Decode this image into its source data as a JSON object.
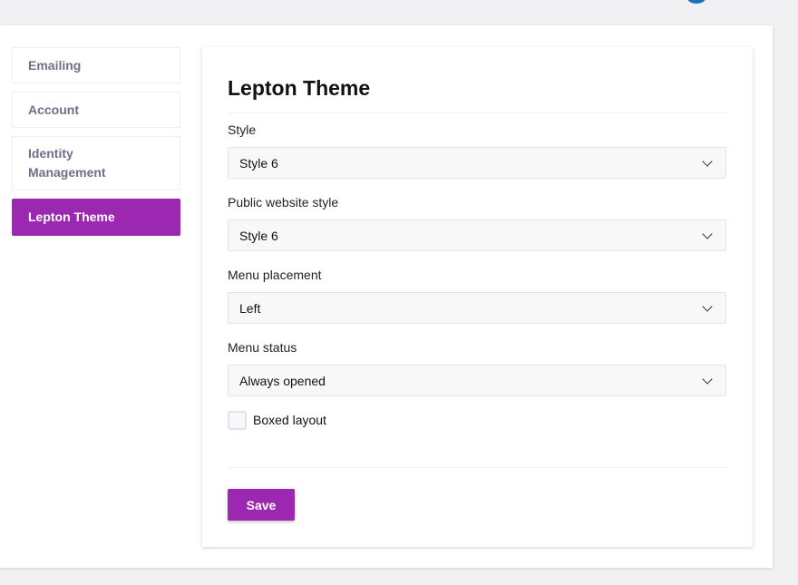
{
  "sidebar": {
    "items": [
      {
        "label": "Emailing"
      },
      {
        "label": "Account"
      },
      {
        "label": "Identity Management"
      },
      {
        "label": "Lepton Theme",
        "active": true
      }
    ]
  },
  "card": {
    "title": "Lepton Theme",
    "fields": [
      {
        "label": "Style",
        "value": "Style 6"
      },
      {
        "label": "Public website style",
        "value": "Style 6"
      },
      {
        "label": "Menu placement",
        "value": "Left"
      },
      {
        "label": "Menu status",
        "value": "Always opened"
      }
    ],
    "boxed_layout": {
      "label": "Boxed layout",
      "checked": false
    },
    "save_label": "Save"
  },
  "colors": {
    "accent": "#9c27b0"
  }
}
